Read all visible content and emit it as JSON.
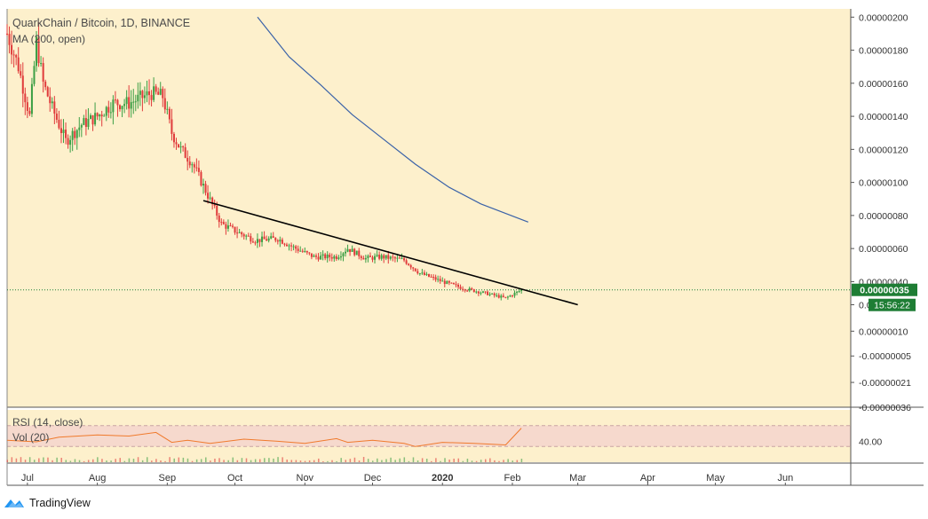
{
  "header": {
    "title": "QuarkChain / Bitcoin, 1D, BINANCE",
    "ma_indicator": "MA (200, open)",
    "rsi_indicator": "RSI (14, close)",
    "vol_indicator": "Vol (20)"
  },
  "footer": {
    "brand": "TradingView"
  },
  "colors": {
    "background": "#fdf0cc",
    "up": "#3c9f45",
    "down": "#e03b3b",
    "ma_line": "#3a62a8",
    "trendline": "#000000",
    "rsi_band": "#f6d9cd",
    "rsi_line": "#f07a2c",
    "price_tag": "#1e7d34",
    "brand": "#2196f3"
  },
  "chart_data": [
    {
      "type": "candlestick",
      "price_axis_ticks": [
        "0.00000200",
        "0.00000180",
        "0.00000160",
        "0.00000140",
        "0.00000120",
        "0.00000100",
        "0.00000080",
        "0.00000060",
        "0.00000040",
        "0.00000026",
        "0.00000010",
        "-0.00000005",
        "-0.00000021",
        "-0.00000036"
      ],
      "time_axis_labels": [
        "Jul",
        "Aug",
        "Sep",
        "Oct",
        "Nov",
        "Dec",
        "2020",
        "Feb",
        "Mar",
        "Apr",
        "May",
        "Jun"
      ],
      "time_axis_dates": [
        "2019-07-01",
        "2019-08-01",
        "2019-09-01",
        "2019-10-01",
        "2019-11-01",
        "2019-12-01",
        "2020-01-01",
        "2020-02-01",
        "2020-03-01",
        "2020-04-01",
        "2020-05-01",
        "2020-06-01"
      ],
      "last_price_label": "0.00000035",
      "countdown_label": "15:56:22",
      "last_price": 3.5e-07,
      "candle_anchors": [
        [
          "2019-06-22",
          1.9e-06
        ],
        [
          "2019-06-27",
          1.7e-06
        ],
        [
          "2019-07-02",
          1.4e-06
        ],
        [
          "2019-07-05",
          1.85e-06
        ],
        [
          "2019-07-08",
          1.6e-06
        ],
        [
          "2019-07-12",
          1.45e-06
        ],
        [
          "2019-07-18",
          1.25e-06
        ],
        [
          "2019-07-25",
          1.35e-06
        ],
        [
          "2019-08-01",
          1.4e-06
        ],
        [
          "2019-08-08",
          1.48e-06
        ],
        [
          "2019-08-15",
          1.48e-06
        ],
        [
          "2019-08-25",
          1.54e-06
        ],
        [
          "2019-08-30",
          1.52e-06
        ],
        [
          "2019-09-03",
          1.3e-06
        ],
        [
          "2019-09-07",
          1.2e-06
        ],
        [
          "2019-09-12",
          1.12e-06
        ],
        [
          "2019-09-18",
          9.5e-07
        ],
        [
          "2019-09-25",
          7.5e-07
        ],
        [
          "2019-10-02",
          7e-07
        ],
        [
          "2019-10-10",
          6.5e-07
        ],
        [
          "2019-10-20",
          6.6e-07
        ],
        [
          "2019-10-28",
          6e-07
        ],
        [
          "2019-11-05",
          5.5e-07
        ],
        [
          "2019-11-15",
          5.5e-07
        ],
        [
          "2019-11-20",
          6e-07
        ],
        [
          "2019-11-28",
          5.4e-07
        ],
        [
          "2019-12-05",
          5.5e-07
        ],
        [
          "2019-12-15",
          5.3e-07
        ],
        [
          "2019-12-22",
          4.5e-07
        ],
        [
          "2020-01-01",
          4e-07
        ],
        [
          "2020-01-10",
          3.6e-07
        ],
        [
          "2020-01-20",
          3.3e-07
        ],
        [
          "2020-01-29",
          3e-07
        ],
        [
          "2020-02-05",
          3.5e-07
        ]
      ],
      "ma_200": [
        [
          "2019-10-11",
          2e-06
        ],
        [
          "2019-10-25",
          1.76e-06
        ],
        [
          "2019-11-08",
          1.59e-06
        ],
        [
          "2019-11-22",
          1.41e-06
        ],
        [
          "2019-12-06",
          1.26e-06
        ],
        [
          "2019-12-20",
          1.11e-06
        ],
        [
          "2020-01-04",
          9.7e-07
        ],
        [
          "2020-01-18",
          8.7e-07
        ],
        [
          "2020-02-08",
          7.6e-07
        ]
      ],
      "trendline": [
        [
          "2019-09-17",
          8.9e-07
        ],
        [
          "2020-03-01",
          2.6e-07
        ]
      ],
      "rsi": {
        "ymin": 0,
        "ymax": 100,
        "tick_label": "40.00",
        "values": [
          [
            "2019-06-22",
            42
          ],
          [
            "2019-07-05",
            39
          ],
          [
            "2019-07-15",
            48
          ],
          [
            "2019-08-01",
            52
          ],
          [
            "2019-08-15",
            50
          ],
          [
            "2019-08-27",
            57
          ],
          [
            "2019-09-03",
            38
          ],
          [
            "2019-09-10",
            42
          ],
          [
            "2019-09-20",
            36
          ],
          [
            "2019-10-05",
            44
          ],
          [
            "2019-10-20",
            40
          ],
          [
            "2019-11-01",
            36
          ],
          [
            "2019-11-15",
            45
          ],
          [
            "2019-11-20",
            38
          ],
          [
            "2019-12-01",
            42
          ],
          [
            "2019-12-15",
            36
          ],
          [
            "2019-12-20",
            30
          ],
          [
            "2020-01-01",
            38
          ],
          [
            "2020-01-15",
            36
          ],
          [
            "2020-01-29",
            33
          ],
          [
            "2020-02-05",
            65
          ]
        ]
      }
    }
  ]
}
